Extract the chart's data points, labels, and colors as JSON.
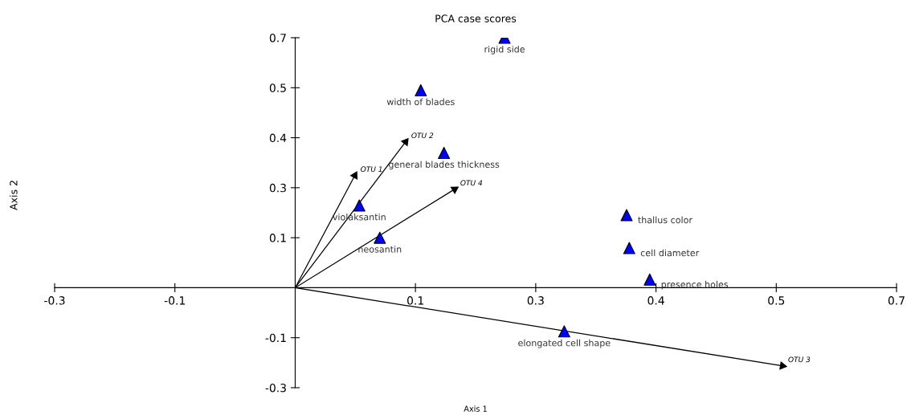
{
  "chart_data": {
    "type": "scatter",
    "title": "PCA case scores",
    "xlabel": "Axis 1",
    "ylabel": "Axis 2",
    "xlim": [
      -0.27,
      0.675
    ],
    "ylim": [
      -0.27,
      0.675
    ],
    "xticks": [
      {
        "value": -0.27,
        "label": "-0.3"
      },
      {
        "value": -0.135,
        "label": "-0.1"
      },
      {
        "value": 0.135,
        "label": "0.1"
      },
      {
        "value": 0.27,
        "label": "0.3"
      },
      {
        "value": 0.405,
        "label": "0.4"
      },
      {
        "value": 0.54,
        "label": "0.5"
      },
      {
        "value": 0.675,
        "label": "0.7"
      }
    ],
    "yticks": [
      {
        "value": -0.27,
        "label": "-0.3"
      },
      {
        "value": -0.135,
        "label": "-0.1"
      },
      {
        "value": 0.135,
        "label": "0.1"
      },
      {
        "value": 0.27,
        "label": "0.3"
      },
      {
        "value": 0.405,
        "label": "0.4"
      },
      {
        "value": 0.54,
        "label": "0.5"
      },
      {
        "value": 0.675,
        "label": "0.7"
      }
    ],
    "grid": false,
    "legend": false,
    "series": [
      {
        "color": "#0000ff",
        "marker": "triangle",
        "x": [
          0.235,
          0.141,
          0.167,
          0.072,
          0.095,
          0.372,
          0.375,
          0.398,
          0.302
        ],
        "values": [
          0.675,
          0.533,
          0.364,
          0.222,
          0.135,
          0.196,
          0.107,
          0.022,
          -0.118
        ]
      },
      {
        "type": "line",
        "name": "OTU 1",
        "color": "#000000",
        "x": [
          0,
          0.067
        ],
        "values": [
          0,
          0.303
        ]
      },
      {
        "type": "line",
        "name": "OTU 2",
        "color": "#000000",
        "x": [
          0,
          0.124
        ],
        "values": [
          0,
          0.394
        ]
      },
      {
        "type": "line",
        "name": "OTU 4",
        "color": "#000000",
        "x": [
          0,
          0.179
        ],
        "values": [
          0,
          0.266
        ]
      },
      {
        "type": "line",
        "name": "OTU 3",
        "color": "#000000",
        "x": [
          0,
          0.547
        ],
        "values": [
          0,
          -0.211
        ]
      }
    ],
    "annotations": [
      {
        "text": "rigid side",
        "x": 0.235,
        "y": 0.675
      },
      {
        "text": "width of blades",
        "x": 0.141,
        "y": 0.533
      },
      {
        "text": "general blades thickness",
        "x": 0.167,
        "y": 0.364
      },
      {
        "text": "violaksantin",
        "x": 0.072,
        "y": 0.222
      },
      {
        "text": "neosantin",
        "x": 0.095,
        "y": 0.135
      },
      {
        "text": "thallus color",
        "x": 0.372,
        "y": 0.196
      },
      {
        "text": "cell diameter",
        "x": 0.375,
        "y": 0.107
      },
      {
        "text": "presence holes",
        "x": 0.398,
        "y": 0.022
      },
      {
        "text": "elongated cell shape",
        "x": 0.302,
        "y": -0.118
      }
    ]
  }
}
